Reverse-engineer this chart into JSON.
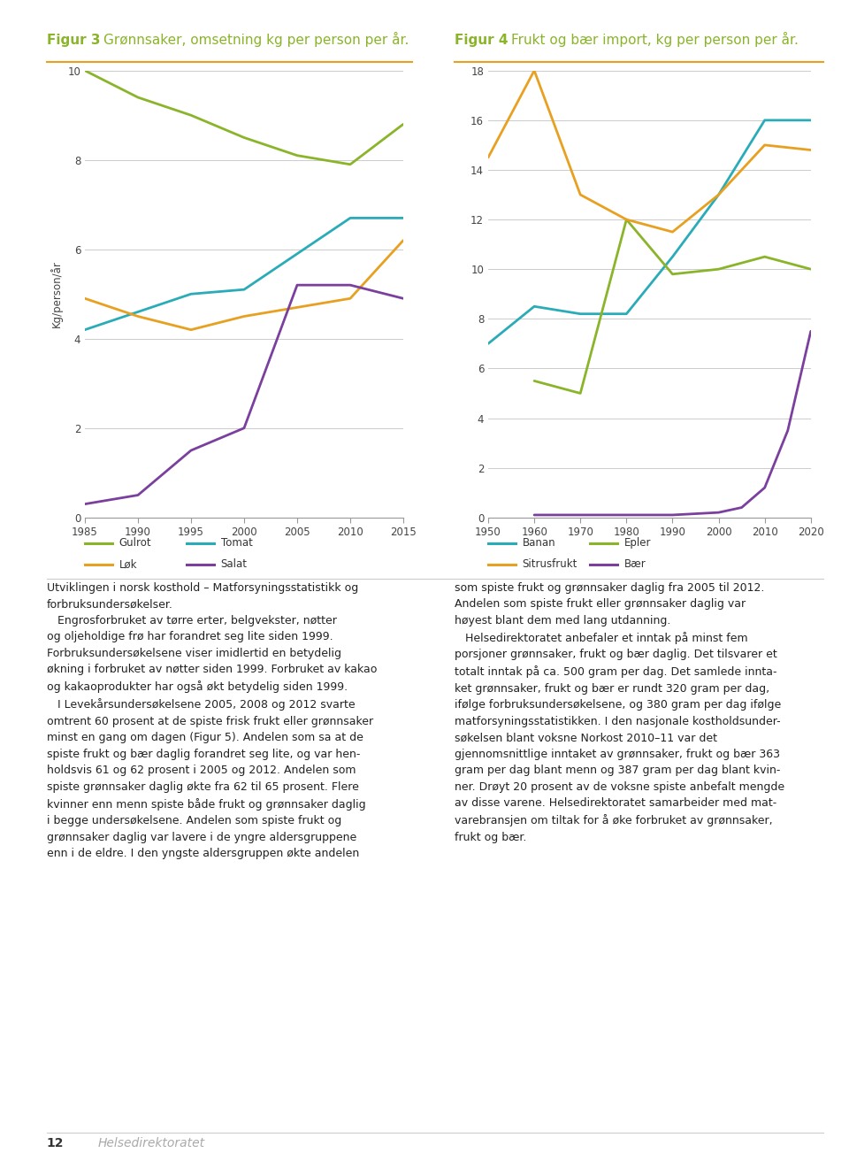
{
  "fig3": {
    "title_bold": "Figur 3",
    "title_rest": "Grønnsaker, omsetning kg per person per år.",
    "ylabel": "Kg/person/år",
    "xlim": [
      1985,
      2015
    ],
    "ylim": [
      0,
      10
    ],
    "yticks": [
      0,
      2,
      4,
      6,
      8,
      10
    ],
    "xticks": [
      1985,
      1990,
      1995,
      2000,
      2005,
      2010,
      2015
    ],
    "series": {
      "Gulrot": {
        "x": [
          1985,
          1990,
          1995,
          2000,
          2005,
          2010,
          2015
        ],
        "y": [
          10.0,
          9.4,
          9.0,
          8.5,
          8.1,
          7.9,
          8.8
        ],
        "color": "#8AB429",
        "legend": "Gulrot"
      },
      "Tomat": {
        "x": [
          1985,
          1990,
          1995,
          2000,
          2005,
          2010,
          2015
        ],
        "y": [
          4.2,
          4.6,
          5.0,
          5.1,
          5.9,
          6.7,
          6.7
        ],
        "color": "#2AACB8",
        "legend": "Tomat"
      },
      "Løk": {
        "x": [
          1985,
          1990,
          1995,
          2000,
          2005,
          2010,
          2015
        ],
        "y": [
          4.9,
          4.5,
          4.2,
          4.5,
          4.7,
          4.9,
          6.2
        ],
        "color": "#E8A020",
        "legend": "Løk"
      },
      "Salat": {
        "x": [
          1985,
          1990,
          1995,
          2000,
          2005,
          2010,
          2015
        ],
        "y": [
          0.3,
          0.5,
          1.5,
          2.0,
          5.2,
          5.2,
          4.9
        ],
        "color": "#7B3F9E",
        "legend": "Salat"
      }
    }
  },
  "fig4": {
    "title_bold": "Figur 4",
    "title_rest": "Frukt og bær import, kg per person per år.",
    "ylabel": "",
    "xlim": [
      1950,
      2020
    ],
    "ylim": [
      0,
      18
    ],
    "yticks": [
      0,
      2,
      4,
      6,
      8,
      10,
      12,
      14,
      16,
      18
    ],
    "xticks": [
      1950,
      1960,
      1970,
      1980,
      1990,
      2000,
      2010,
      2020
    ],
    "series": {
      "Banan": {
        "x": [
          1950,
          1960,
          1970,
          1980,
          1990,
          2000,
          2010,
          2020
        ],
        "y": [
          7.0,
          8.5,
          8.2,
          8.2,
          10.5,
          13.0,
          16.0,
          16.0
        ],
        "color": "#2AACB8",
        "legend": "Banan"
      },
      "Epler": {
        "x": [
          1960,
          1970,
          1980,
          1990,
          2000,
          2010,
          2020
        ],
        "y": [
          5.5,
          5.0,
          12.0,
          9.8,
          10.0,
          10.5,
          10.0
        ],
        "color": "#8AB429",
        "legend": "Epler"
      },
      "Sitrusfrukt": {
        "x": [
          1950,
          1960,
          1970,
          1980,
          1990,
          2000,
          2010,
          2020
        ],
        "y": [
          14.5,
          18.0,
          13.0,
          12.0,
          11.5,
          13.0,
          15.0,
          14.8
        ],
        "color": "#E8A020",
        "legend": "Sitrusfrukt"
      },
      "Bær": {
        "x": [
          1960,
          1970,
          1980,
          1990,
          2000,
          2005,
          2010,
          2015,
          2020
        ],
        "y": [
          0.1,
          0.1,
          0.1,
          0.1,
          0.2,
          0.4,
          1.2,
          3.5,
          7.5
        ],
        "color": "#7B3F9E",
        "legend": "Bær"
      }
    }
  },
  "accent_color": "#E8A020",
  "background_color": "#FFFFFF",
  "text_color": "#333333",
  "title_green": "#8AB429",
  "page_num": "12",
  "page_label": "Helsedirektoratet"
}
